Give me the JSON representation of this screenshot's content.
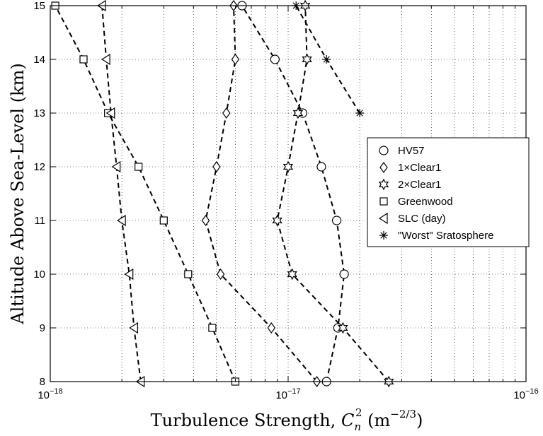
{
  "chart_data": {
    "type": "line",
    "xscale": "log",
    "xlim": [
      1e-18,
      1e-16
    ],
    "ylim": [
      8,
      15
    ],
    "grid": true,
    "legend_position": "right",
    "xlabel_text": "Turbulence Strength, ",
    "xlabel_symbol": "C",
    "xlabel_sub": "n",
    "xlabel_sup": "2",
    "xlabel_units_open": " (m",
    "xlabel_units_exp": "−2/3",
    "xlabel_units_close": ")",
    "ylabel": "Altitude Above Sea-Level (km)",
    "xticks": [
      {
        "value": 1e-18,
        "base": "10",
        "exp": "−18"
      },
      {
        "value": 1e-17,
        "base": "10",
        "exp": "−17"
      },
      {
        "value": 1e-16,
        "base": "10",
        "exp": "−16"
      }
    ],
    "yticks": [
      "8",
      "9",
      "10",
      "11",
      "12",
      "13",
      "14",
      "15"
    ],
    "series": [
      {
        "name": "HV57",
        "marker": "circle",
        "points": [
          [
            1.45e-17,
            8
          ],
          [
            1.62e-17,
            9
          ],
          [
            1.72e-17,
            10
          ],
          [
            1.6e-17,
            11
          ],
          [
            1.38e-17,
            12
          ],
          [
            1.15e-17,
            13
          ],
          [
            8.8e-18,
            14
          ],
          [
            6.4e-18,
            15
          ]
        ]
      },
      {
        "name": "1×Clear1",
        "marker": "diamond",
        "points": [
          [
            1.32e-17,
            8
          ],
          [
            8.5e-18,
            9
          ],
          [
            5.2e-18,
            10
          ],
          [
            4.5e-18,
            11
          ],
          [
            5e-18,
            12
          ],
          [
            5.5e-18,
            13
          ],
          [
            6e-18,
            14
          ],
          [
            5.9e-18,
            15
          ]
        ]
      },
      {
        "name": "2×Clear1",
        "marker": "star6",
        "points": [
          [
            2.65e-17,
            8
          ],
          [
            1.7e-17,
            9
          ],
          [
            1.04e-17,
            10
          ],
          [
            9e-18,
            11
          ],
          [
            1e-17,
            12
          ],
          [
            1.1e-17,
            13
          ],
          [
            1.2e-17,
            14
          ],
          [
            1.18e-17,
            15
          ]
        ]
      },
      {
        "name": "Greenwood",
        "marker": "square",
        "points": [
          [
            6e-18,
            8
          ],
          [
            4.8e-18,
            9
          ],
          [
            3.8e-18,
            10
          ],
          [
            3e-18,
            11
          ],
          [
            2.35e-18,
            12
          ],
          [
            1.75e-18,
            13
          ],
          [
            1.38e-18,
            14
          ],
          [
            1.05e-18,
            15
          ]
        ]
      },
      {
        "name": "SLC (day)",
        "marker": "triangle-left",
        "points": [
          [
            2.4e-18,
            8
          ],
          [
            2.25e-18,
            9
          ],
          [
            2.15e-18,
            10
          ],
          [
            2e-18,
            11
          ],
          [
            1.9e-18,
            12
          ],
          [
            1.8e-18,
            13
          ],
          [
            1.72e-18,
            14
          ],
          [
            1.65e-18,
            15
          ]
        ]
      },
      {
        "name": "\"Worst\" Sratosphere",
        "marker": "asterisk",
        "points": [
          [
            2e-17,
            13
          ],
          [
            1.45e-17,
            14
          ],
          [
            1.08e-17,
            15
          ]
        ]
      }
    ]
  }
}
